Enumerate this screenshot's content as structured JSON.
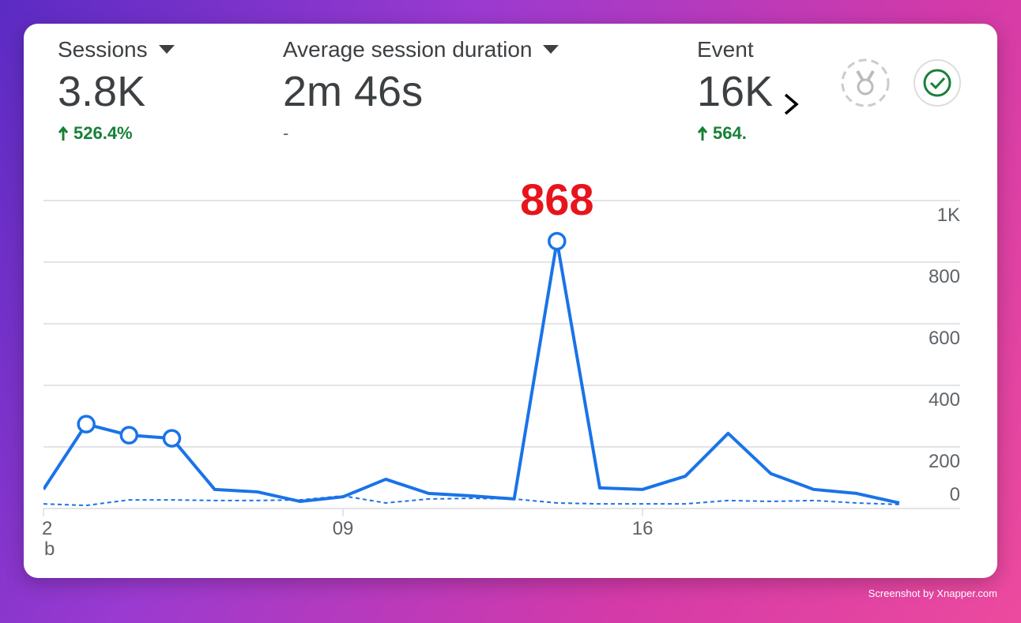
{
  "metrics": [
    {
      "name": "Sessions",
      "value": "3.8K",
      "change": "526.4%",
      "trend": "up"
    },
    {
      "name": "Average session duration",
      "value": "2m 46s",
      "change": "-"
    },
    {
      "name": "Event",
      "value": "16K",
      "change": "564.",
      "trend": "up"
    }
  ],
  "chart_data": {
    "type": "line",
    "categories": [
      "2",
      null,
      null,
      null,
      null,
      null,
      null,
      "09",
      null,
      null,
      null,
      null,
      null,
      null,
      "16",
      null,
      null,
      null,
      null,
      null,
      null
    ],
    "month_label": "b",
    "series": [
      {
        "color": "#1a73e8",
        "values": [
          62,
          274,
          238,
          228,
          62,
          54,
          23,
          38,
          95,
          49,
          41,
          31,
          868,
          67,
          62,
          105,
          244,
          113,
          62,
          49,
          18
        ],
        "markers": [
          1,
          2,
          3,
          12
        ]
      },
      {
        "color": "#1a73e8",
        "dashed": true,
        "values": [
          15,
          10,
          28,
          28,
          26,
          26,
          28,
          41,
          18,
          31,
          33,
          31,
          18,
          15,
          15,
          15,
          26,
          23,
          26,
          18,
          13
        ]
      }
    ],
    "ylim": [
      0,
      1000
    ],
    "yticks": [
      0,
      200,
      400,
      600,
      800,
      {
        "value": 1000,
        "label": "1K"
      }
    ],
    "grid": true
  },
  "watermark": "Screenshot by Xnapper.com"
}
